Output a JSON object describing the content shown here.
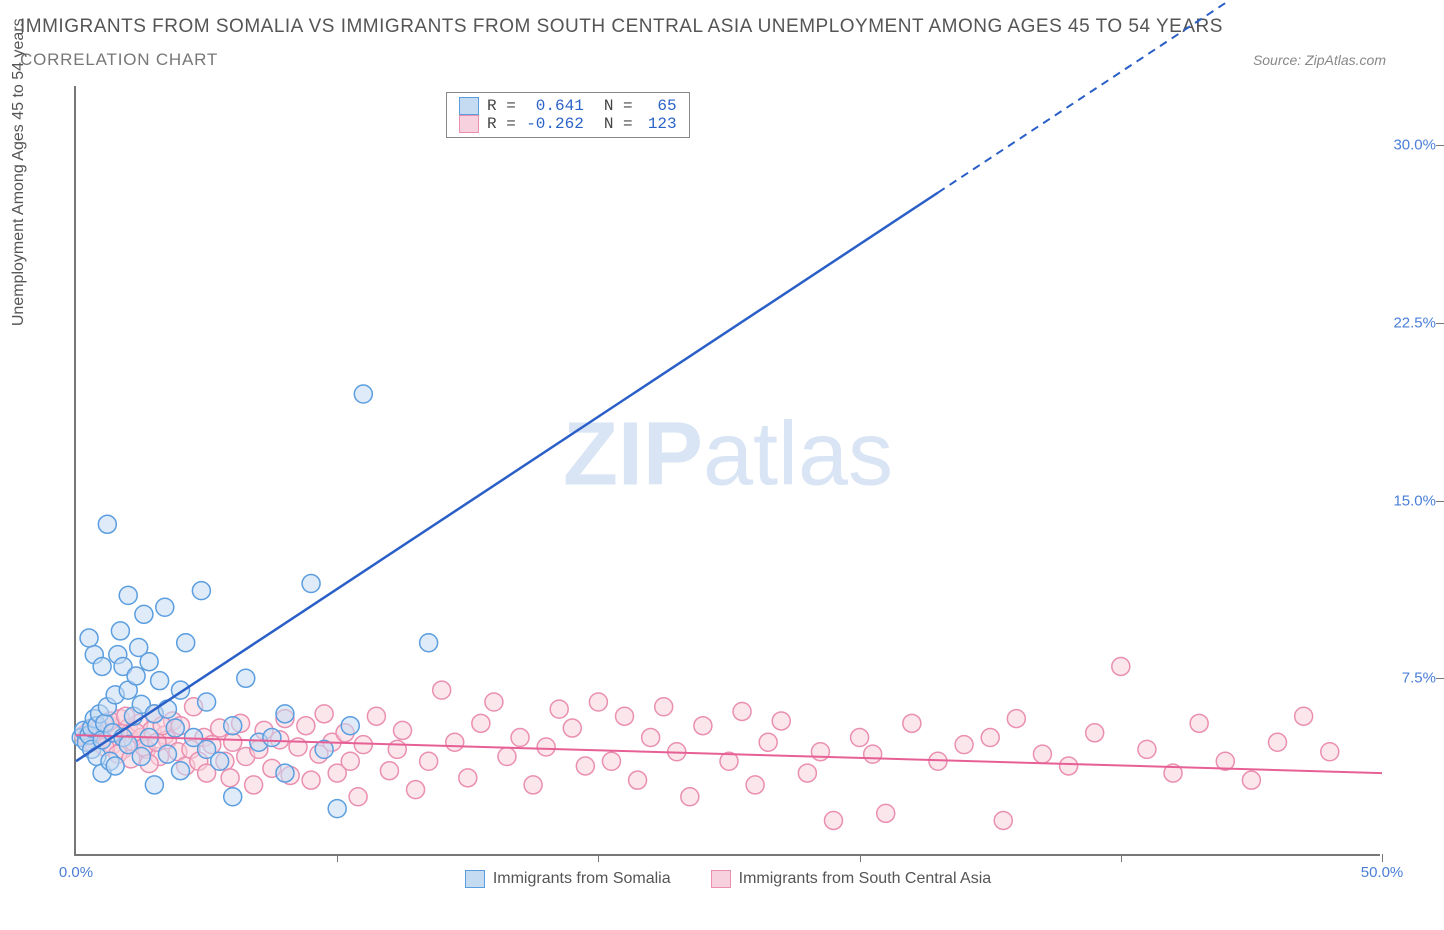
{
  "title": "IMMIGRANTS FROM SOMALIA VS IMMIGRANTS FROM SOUTH CENTRAL ASIA UNEMPLOYMENT AMONG AGES 45 TO 54 YEARS",
  "subtitle": "CORRELATION CHART",
  "source": "Source: ZipAtlas.com",
  "y_axis_label": "Unemployment Among Ages 45 to 54 years",
  "watermark_bold": "ZIP",
  "watermark_light": "atlas",
  "chart": {
    "type": "scatter",
    "xlim": [
      0,
      50
    ],
    "ylim": [
      0,
      32.5
    ],
    "yticks": [
      7.5,
      15.0,
      22.5,
      30.0
    ],
    "ytick_labels": [
      "7.5%",
      "15.0%",
      "22.5%",
      "30.0%"
    ],
    "xtick_positions": [
      10,
      20,
      30,
      40,
      50
    ],
    "x_start_label": "0.0%",
    "x_end_label": "50.0%",
    "background_color": "#ffffff",
    "axis_color": "#777777",
    "tick_label_color": "#4a7fd8"
  },
  "series": [
    {
      "name": "Immigrants from Somalia",
      "color_fill": "#c5dbf2",
      "color_stroke": "#5b9ee0",
      "line_color": "#2a5fc8",
      "marker_radius": 9,
      "fill_opacity": 0.55,
      "r_value": "0.641",
      "n_value": "65",
      "trend": {
        "x1": 0,
        "y1": 4.0,
        "x2": 33,
        "y2": 28.0,
        "dash_from_x": 33,
        "dash_to_x": 44,
        "dash_to_y": 36.0
      },
      "points": [
        [
          0.2,
          5.0
        ],
        [
          0.3,
          5.3
        ],
        [
          0.4,
          4.8
        ],
        [
          0.5,
          5.1
        ],
        [
          0.6,
          4.5
        ],
        [
          0.6,
          5.4
        ],
        [
          0.7,
          5.8
        ],
        [
          0.8,
          4.2
        ],
        [
          0.8,
          5.5
        ],
        [
          0.9,
          6.0
        ],
        [
          1.0,
          3.5
        ],
        [
          1.0,
          4.9
        ],
        [
          1.1,
          5.6
        ],
        [
          1.2,
          6.3
        ],
        [
          1.3,
          4.0
        ],
        [
          1.4,
          5.2
        ],
        [
          1.5,
          6.8
        ],
        [
          1.5,
          3.8
        ],
        [
          1.6,
          8.5
        ],
        [
          1.7,
          9.5
        ],
        [
          1.8,
          5.0
        ],
        [
          1.8,
          8.0
        ],
        [
          2.0,
          7.0
        ],
        [
          2.0,
          4.7
        ],
        [
          2.2,
          5.9
        ],
        [
          2.3,
          7.6
        ],
        [
          2.4,
          8.8
        ],
        [
          2.5,
          4.2
        ],
        [
          2.5,
          6.4
        ],
        [
          2.6,
          10.2
        ],
        [
          2.8,
          5.0
        ],
        [
          2.8,
          8.2
        ],
        [
          3.0,
          6.0
        ],
        [
          3.0,
          3.0
        ],
        [
          3.2,
          7.4
        ],
        [
          3.4,
          10.5
        ],
        [
          3.5,
          4.3
        ],
        [
          3.5,
          6.2
        ],
        [
          3.8,
          5.4
        ],
        [
          4.0,
          3.6
        ],
        [
          4.0,
          7.0
        ],
        [
          4.2,
          9.0
        ],
        [
          4.5,
          5.0
        ],
        [
          4.8,
          11.2
        ],
        [
          5.0,
          4.5
        ],
        [
          5.0,
          6.5
        ],
        [
          5.5,
          4.0
        ],
        [
          6.0,
          5.5
        ],
        [
          6.0,
          2.5
        ],
        [
          6.5,
          7.5
        ],
        [
          7.0,
          4.8
        ],
        [
          7.5,
          5.0
        ],
        [
          8.0,
          3.5
        ],
        [
          8.0,
          6.0
        ],
        [
          9.0,
          11.5
        ],
        [
          9.5,
          4.5
        ],
        [
          10.0,
          2.0
        ],
        [
          10.5,
          5.5
        ],
        [
          11.0,
          19.5
        ],
        [
          13.5,
          9.0
        ],
        [
          1.2,
          14.0
        ],
        [
          2.0,
          11.0
        ],
        [
          0.7,
          8.5
        ],
        [
          0.5,
          9.2
        ],
        [
          1.0,
          8.0
        ]
      ]
    },
    {
      "name": "Immigrants from South Central Asia",
      "color_fill": "#f7d1dd",
      "color_stroke": "#ea8fb0",
      "line_color": "#e76095",
      "marker_radius": 9,
      "fill_opacity": 0.55,
      "r_value": "-0.262",
      "n_value": "123",
      "trend": {
        "x1": 0,
        "y1": 5.1,
        "x2": 50,
        "y2": 3.5
      },
      "points": [
        [
          0.3,
          5.1
        ],
        [
          0.5,
          5.3
        ],
        [
          0.7,
          4.9
        ],
        [
          0.8,
          5.5
        ],
        [
          1.0,
          5.0
        ],
        [
          1.2,
          5.6
        ],
        [
          1.4,
          4.7
        ],
        [
          1.5,
          5.2
        ],
        [
          1.7,
          5.8
        ],
        [
          1.8,
          4.5
        ],
        [
          2.0,
          5.4
        ],
        [
          2.2,
          4.8
        ],
        [
          2.4,
          5.6
        ],
        [
          2.5,
          5.0
        ],
        [
          2.7,
          4.5
        ],
        [
          2.9,
          5.3
        ],
        [
          3.0,
          6.0
        ],
        [
          3.2,
          4.2
        ],
        [
          3.4,
          5.1
        ],
        [
          3.5,
          4.9
        ],
        [
          3.7,
          5.7
        ],
        [
          3.9,
          4.4
        ],
        [
          4.0,
          5.5
        ],
        [
          4.2,
          3.8
        ],
        [
          4.4,
          4.5
        ],
        [
          4.5,
          6.3
        ],
        [
          4.7,
          4.0
        ],
        [
          4.9,
          5.0
        ],
        [
          5.0,
          3.5
        ],
        [
          5.2,
          4.7
        ],
        [
          5.5,
          5.4
        ],
        [
          5.7,
          4.0
        ],
        [
          5.9,
          3.3
        ],
        [
          6.0,
          4.8
        ],
        [
          6.3,
          5.6
        ],
        [
          6.5,
          4.2
        ],
        [
          6.8,
          3.0
        ],
        [
          7.0,
          4.5
        ],
        [
          7.2,
          5.3
        ],
        [
          7.5,
          3.7
        ],
        [
          7.8,
          4.9
        ],
        [
          8.0,
          5.8
        ],
        [
          8.2,
          3.4
        ],
        [
          8.5,
          4.6
        ],
        [
          8.8,
          5.5
        ],
        [
          9.0,
          3.2
        ],
        [
          9.3,
          4.3
        ],
        [
          9.5,
          6.0
        ],
        [
          9.8,
          4.8
        ],
        [
          10.0,
          3.5
        ],
        [
          10.3,
          5.2
        ],
        [
          10.5,
          4.0
        ],
        [
          10.8,
          2.5
        ],
        [
          11.0,
          4.7
        ],
        [
          11.5,
          5.9
        ],
        [
          12.0,
          3.6
        ],
        [
          12.3,
          4.5
        ],
        [
          12.5,
          5.3
        ],
        [
          13.0,
          2.8
        ],
        [
          13.5,
          4.0
        ],
        [
          14.0,
          7.0
        ],
        [
          14.5,
          4.8
        ],
        [
          15.0,
          3.3
        ],
        [
          15.5,
          5.6
        ],
        [
          16.0,
          6.5
        ],
        [
          16.5,
          4.2
        ],
        [
          17.0,
          5.0
        ],
        [
          17.5,
          3.0
        ],
        [
          18.0,
          4.6
        ],
        [
          18.5,
          6.2
        ],
        [
          19.0,
          5.4
        ],
        [
          19.5,
          3.8
        ],
        [
          20.0,
          6.5
        ],
        [
          20.5,
          4.0
        ],
        [
          21.0,
          5.9
        ],
        [
          21.5,
          3.2
        ],
        [
          22.0,
          5.0
        ],
        [
          22.5,
          6.3
        ],
        [
          23.0,
          4.4
        ],
        [
          23.5,
          2.5
        ],
        [
          24.0,
          5.5
        ],
        [
          25.0,
          4.0
        ],
        [
          25.5,
          6.1
        ],
        [
          26.0,
          3.0
        ],
        [
          26.5,
          4.8
        ],
        [
          27.0,
          5.7
        ],
        [
          28.0,
          3.5
        ],
        [
          28.5,
          4.4
        ],
        [
          29.0,
          1.5
        ],
        [
          30.0,
          5.0
        ],
        [
          30.5,
          4.3
        ],
        [
          31.0,
          1.8
        ],
        [
          32.0,
          5.6
        ],
        [
          33.0,
          4.0
        ],
        [
          34.0,
          4.7
        ],
        [
          35.0,
          5.0
        ],
        [
          35.5,
          1.5
        ],
        [
          36.0,
          5.8
        ],
        [
          37.0,
          4.3
        ],
        [
          38.0,
          3.8
        ],
        [
          39.0,
          5.2
        ],
        [
          40.0,
          8.0
        ],
        [
          41.0,
          4.5
        ],
        [
          42.0,
          3.5
        ],
        [
          43.0,
          5.6
        ],
        [
          44.0,
          4.0
        ],
        [
          45.0,
          3.2
        ],
        [
          46.0,
          4.8
        ],
        [
          47.0,
          5.9
        ],
        [
          48.0,
          4.4
        ],
        [
          0.4,
          5.0
        ],
        [
          0.6,
          4.8
        ],
        [
          0.9,
          5.4
        ],
        [
          1.1,
          4.6
        ],
        [
          1.3,
          5.7
        ],
        [
          1.6,
          4.3
        ],
        [
          1.9,
          5.9
        ],
        [
          2.1,
          4.1
        ],
        [
          2.3,
          5.2
        ],
        [
          2.6,
          4.6
        ],
        [
          2.8,
          3.9
        ],
        [
          3.1,
          4.8
        ],
        [
          3.3,
          5.5
        ]
      ]
    }
  ],
  "stats_labels": {
    "r": "R =",
    "n": "N ="
  },
  "legend": [
    {
      "label": "Immigrants from Somalia",
      "fill": "#c5dbf2",
      "stroke": "#5b9ee0"
    },
    {
      "label": "Immigrants from South Central Asia",
      "fill": "#f7d1dd",
      "stroke": "#ea8fb0"
    }
  ]
}
